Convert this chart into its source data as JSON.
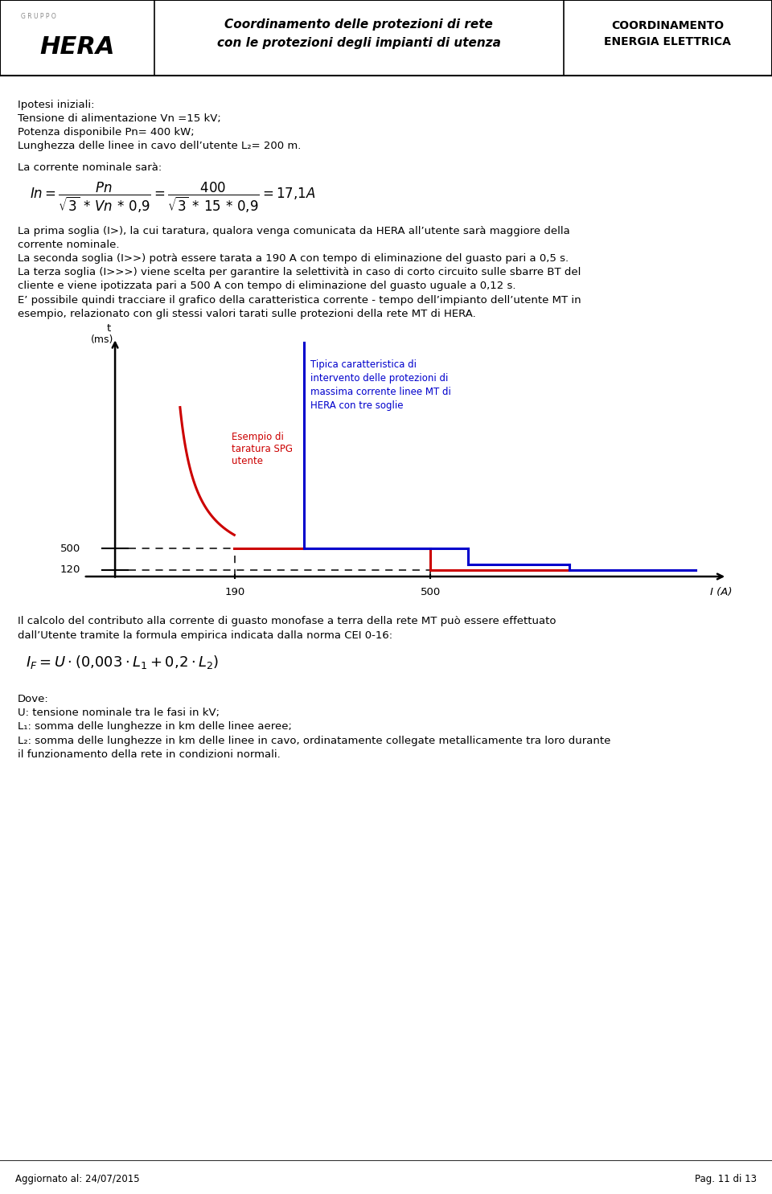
{
  "page_width": 9.6,
  "page_height": 14.85,
  "bg_color": "#ffffff",
  "header": {
    "title_center": "Coordinamento delle protezioni di rete\ncon le protezioni degli impianti di utenza",
    "title_right": "COORDINAMENTO\nENERGIA ELETTRICA"
  },
  "body1_lines": [
    "Ipotesi iniziali:",
    "Tensione di alimentazione Vn =15 kV;",
    "Potenza disponibile Pn= 400 kW;",
    "Lunghezza delle linee in cavo dell’utente L₂= 200 m."
  ],
  "body2": "La corrente nominale sarà:",
  "body3_lines": [
    "La prima soglia (I>), la cui taratura, qualora venga comunicata da HERA all’utente sarà maggiore della",
    "corrente nominale.",
    "La seconda soglia (I>>) potrà essere tarata a 190 A con tempo di eliminazione del guasto pari a 0,5 s.",
    "La terza soglia (I>>>) viene scelta per garantire la selettività in caso di corto circuito sulle sbarre BT del",
    "cliente e viene ipotizzata pari a 500 A con tempo di eliminazione del guasto uguale a 0,12 s.",
    "E’ possibile quindi tracciare il grafico della caratteristica corrente - tempo dell’impianto dell’utente MT in",
    "esempio, relazionato con gli stessi valori tarati sulle protezioni della rete MT di HERA."
  ],
  "body4_lines": [
    "Il calcolo del contributo alla corrente di guasto monofase a terra della rete MT può essere effettuato",
    "dall’Utente tramite la formula empirica indicata dalla norma CEI 0-16:"
  ],
  "body5_lines": [
    "Dove:",
    "U: tensione nominale tra le fasi in kV;",
    "L₁: somma delle lunghezze in km delle linee aeree;",
    "L₂: somma delle lunghezze in km delle linee in cavo, ordinatamente collegate metallicamente tra loro durante",
    "il funzionamento della rete in condizioni normali."
  ],
  "chart": {
    "red_color": "#cc0000",
    "blue_color": "#0000cc",
    "line_width": 2.2,
    "annotation_red": "Esempio di\ntaratura SPG\nutente",
    "annotation_blue": "Tipica caratteristica di\nintervento delle protezioni di\nmassima corrente linee MT di\nHERA con tre soglie"
  },
  "footer_left": "Aggiornato al: 24/07/2015",
  "footer_right": "Pag. 11 di 13"
}
